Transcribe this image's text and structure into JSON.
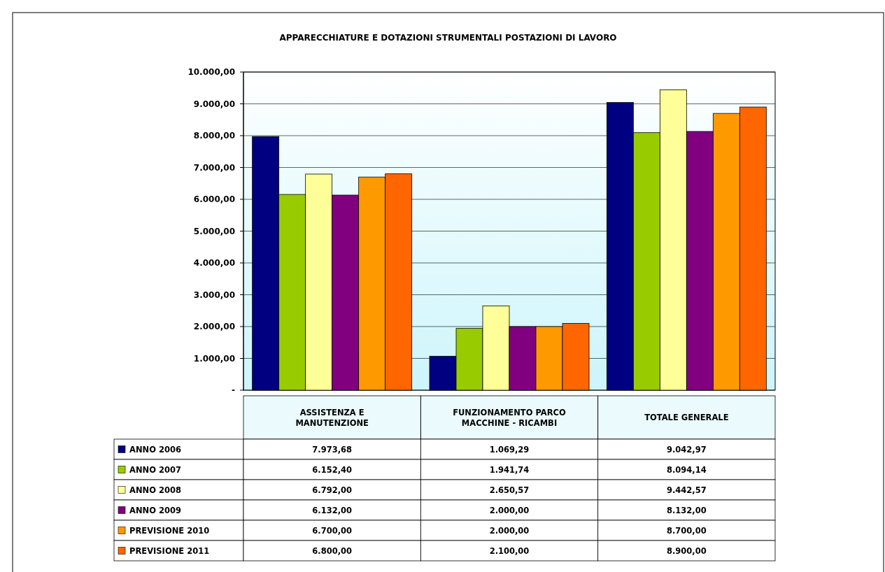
{
  "chart_data": {
    "type": "bar",
    "title": "APPARECCHIATURE E DOTAZIONI STRUMENTALI POSTAZIONI DI LAVORO",
    "categories": [
      "ASSISTENZA E MANUTENZIONE",
      "FUNZIONAMENTO PARCO MACCHINE - RICAMBI",
      "TOTALE GENERALE"
    ],
    "series": [
      {
        "name": "ANNO 2006",
        "color": "#000080",
        "values": [
          7973.68,
          1069.29,
          9042.97
        ],
        "value_labels": [
          "7.973,68",
          "1.069,29",
          "9.042,97"
        ]
      },
      {
        "name": "ANNO 2007",
        "color": "#99cc00",
        "values": [
          6152.4,
          1941.74,
          8094.14
        ],
        "value_labels": [
          "6.152,40",
          "1.941,74",
          "8.094,14"
        ]
      },
      {
        "name": "ANNO 2008",
        "color": "#ffff99",
        "values": [
          6792.0,
          2650.57,
          9442.57
        ],
        "value_labels": [
          "6.792,00",
          "2.650,57",
          "9.442,57"
        ]
      },
      {
        "name": "ANNO 2009",
        "color": "#800080",
        "values": [
          6132.0,
          2000.0,
          8132.0
        ],
        "value_labels": [
          "6.132,00",
          "2.000,00",
          "8.132,00"
        ]
      },
      {
        "name": "PREVISIONE 2010",
        "color": "#ff9900",
        "values": [
          6700.0,
          2000.0,
          8700.0
        ],
        "value_labels": [
          "6.700,00",
          "2.000,00",
          "8.700,00"
        ]
      },
      {
        "name": "PREVISIONE 2011",
        "color": "#ff6600",
        "values": [
          6800.0,
          2100.0,
          8900.0
        ],
        "value_labels": [
          "6.800,00",
          "2.100,00",
          "8.900,00"
        ]
      }
    ],
    "ylim": [
      0,
      10000
    ],
    "yticks": [
      {
        "value": 0,
        "label": "-"
      },
      {
        "value": 1000,
        "label": "1.000,00"
      },
      {
        "value": 2000,
        "label": "2.000,00"
      },
      {
        "value": 3000,
        "label": "3.000,00"
      },
      {
        "value": 4000,
        "label": "4.000,00"
      },
      {
        "value": 5000,
        "label": "5.000,00"
      },
      {
        "value": 6000,
        "label": "6.000,00"
      },
      {
        "value": 7000,
        "label": "7.000,00"
      },
      {
        "value": 8000,
        "label": "8.000,00"
      },
      {
        "value": 9000,
        "label": "9.000,00"
      },
      {
        "value": 10000,
        "label": "10.000,00"
      }
    ],
    "grid": "y",
    "legend": "bottom"
  }
}
